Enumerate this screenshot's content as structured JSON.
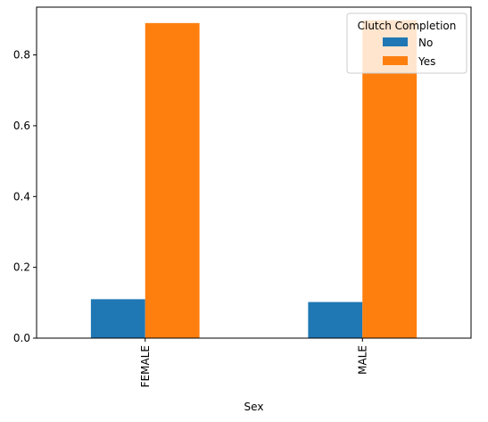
{
  "chart_data": {
    "type": "bar",
    "categories": [
      "FEMALE",
      "MALE"
    ],
    "series": [
      {
        "name": "No",
        "values": [
          0.11,
          0.102
        ],
        "color": "#1f77b4"
      },
      {
        "name": "Yes",
        "values": [
          0.89,
          0.898
        ],
        "color": "#ff7f0e"
      }
    ],
    "xlabel": "Sex",
    "ylabel": "",
    "ylim": [
      0,
      0.935
    ],
    "yticks": [
      0.0,
      0.2,
      0.4,
      0.6,
      0.8
    ],
    "ytick_labels": [
      "0.0",
      "0.2",
      "0.4",
      "0.6",
      "0.8"
    ],
    "legend": {
      "title": "Clutch Completion",
      "placement": "top-right"
    },
    "grid": false
  }
}
